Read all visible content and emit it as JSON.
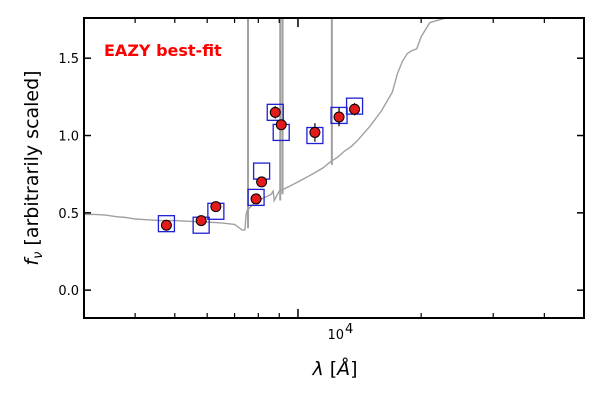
{
  "chart_data": {
    "type": "scatter",
    "annotation": "EAZY best-fit",
    "annotation_color": "#ff0000",
    "xlabel_symbol": "λ",
    "xlabel_unit": "Å",
    "ylabel_symbol": "f",
    "ylabel_sub": "ν",
    "ylabel_text": "[arbitrarily scaled]",
    "x_scale": "log",
    "xlim": [
      3000,
      50000
    ],
    "ylim": [
      -0.18,
      1.76
    ],
    "x_major_tick_label": {
      "base": "10",
      "exponent": "4"
    },
    "x_major_tick_value": 10000,
    "x_minor_ticks": [
      4000,
      5000,
      6000,
      7000,
      8000,
      9000,
      20000,
      30000,
      40000
    ],
    "y_ticks": [
      0.0,
      0.5,
      1.0,
      1.5
    ],
    "y_tick_labels": [
      "0.0",
      "0.5",
      "1.0",
      "1.5"
    ],
    "grid": false,
    "colors": {
      "model": "#a0a0a0",
      "model_box": "#1f1fd6",
      "observed_fill": "#e31a1c",
      "observed_edge": "#000000"
    },
    "series": [
      {
        "kind": "observed",
        "x": [
          4770,
          5800,
          6300,
          7900,
          8150,
          8800,
          9100,
          11000,
          12600,
          13750
        ],
        "y": [
          0.42,
          0.45,
          0.54,
          0.59,
          0.7,
          1.15,
          1.07,
          1.02,
          1.12,
          1.17
        ],
        "yerr": [
          0.02,
          0.02,
          0.02,
          0.03,
          0.02,
          0.04,
          0.03,
          0.06,
          0.06,
          0.04
        ]
      },
      {
        "kind": "model_photometry",
        "x": [
          4770,
          5800,
          6300,
          7900,
          8150,
          8800,
          9100,
          11000,
          12600,
          13750
        ],
        "y": [
          0.43,
          0.42,
          0.51,
          0.6,
          0.77,
          1.15,
          1.02,
          1.0,
          1.13,
          1.19
        ]
      },
      {
        "kind": "model_spectrum",
        "x": [
          3000,
          3200,
          3400,
          3600,
          3800,
          4000,
          4300,
          4600,
          5000,
          5500,
          6000,
          6500,
          7000,
          7300,
          7420,
          7470,
          7520,
          7600,
          7800,
          8000,
          8300,
          8600,
          8700,
          8750,
          9000,
          9500,
          10000,
          10500,
          11000,
          11500,
          12000,
          12500,
          13000,
          13500,
          14000,
          15000,
          16000,
          17000,
          17500,
          18000,
          18500,
          19000,
          19500,
          20000,
          21000,
          23000,
          25000
        ],
        "y": [
          0.49,
          0.49,
          0.485,
          0.475,
          0.47,
          0.46,
          0.455,
          0.45,
          0.45,
          0.445,
          0.44,
          0.435,
          0.425,
          0.39,
          0.39,
          0.49,
          0.52,
          0.53,
          0.56,
          0.58,
          0.6,
          0.62,
          0.64,
          0.58,
          0.64,
          0.67,
          0.7,
          0.73,
          0.76,
          0.79,
          0.83,
          0.86,
          0.9,
          0.93,
          0.97,
          1.06,
          1.16,
          1.28,
          1.4,
          1.48,
          1.53,
          1.55,
          1.56,
          1.64,
          1.73,
          1.76,
          1.77
        ]
      }
    ],
    "emission_spikes": [
      {
        "x": 7550,
        "y_from": 0.4,
        "y_to": 1.76
      },
      {
        "x": 9050,
        "y_from": 0.58,
        "y_to": 1.76
      },
      {
        "x": 9170,
        "y_from": 0.62,
        "y_to": 1.76
      },
      {
        "x": 12100,
        "y_from": 0.81,
        "y_to": 1.76
      }
    ]
  }
}
